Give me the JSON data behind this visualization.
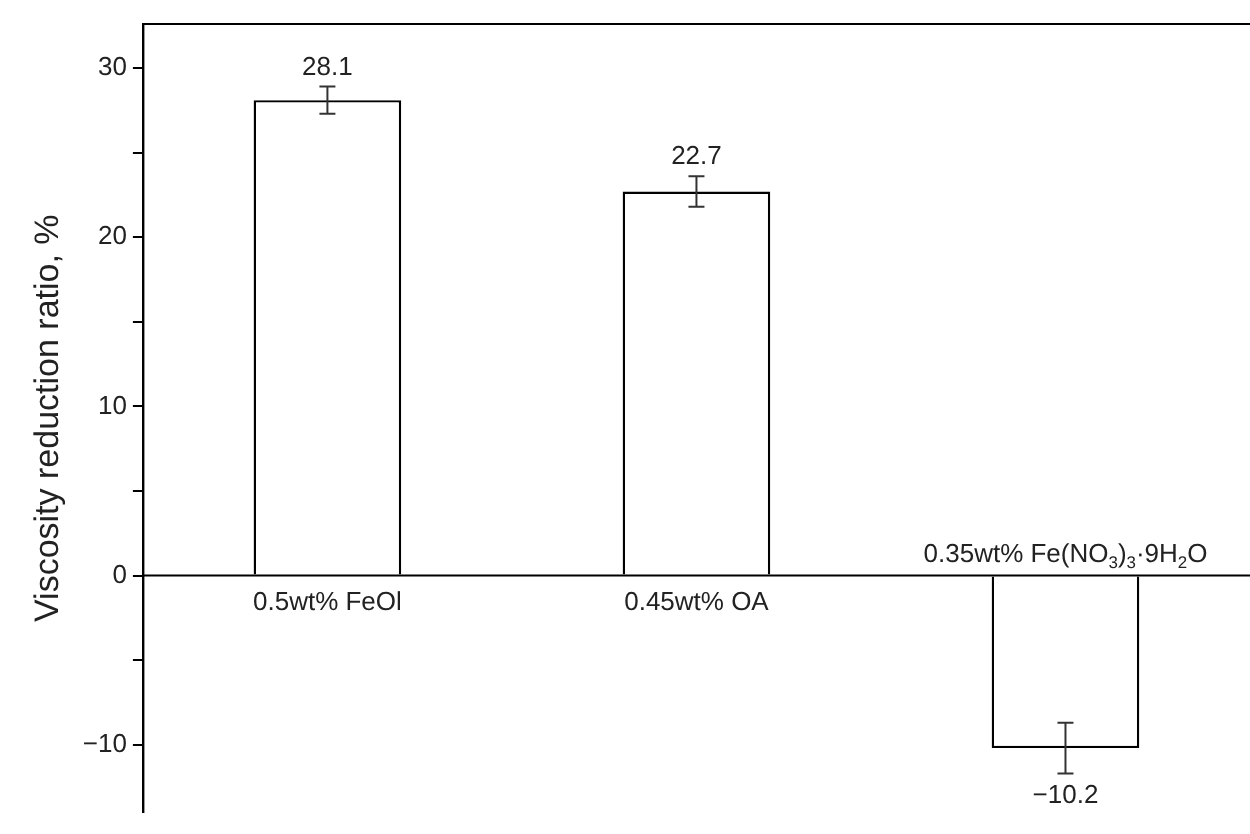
{
  "chart_data": {
    "type": "bar",
    "ylabel": "Viscosity reduction ratio, %",
    "categories": [
      "0.5wt% FeOl",
      "0.45wt% OA",
      "0.35wt% Fe(NO$_{3}$)$_{3}$·9H$_{2}$O"
    ],
    "values": [
      28.1,
      22.7,
      -10.2
    ],
    "errors": [
      0.8,
      0.9,
      1.5
    ],
    "value_labels": [
      "28.1",
      "22.7",
      "−10.2"
    ],
    "color": "#ffffff",
    "ylim": [
      -14,
      32.6
    ],
    "yticks": [
      {
        "value": -10,
        "label": "−10"
      },
      {
        "value": -5,
        "label": null
      },
      0,
      {
        "value": 5,
        "label": null
      },
      10,
      {
        "value": 15,
        "label": null
      },
      20,
      {
        "value": 25,
        "label": null
      },
      30
    ],
    "grid": false,
    "legend": false
  }
}
